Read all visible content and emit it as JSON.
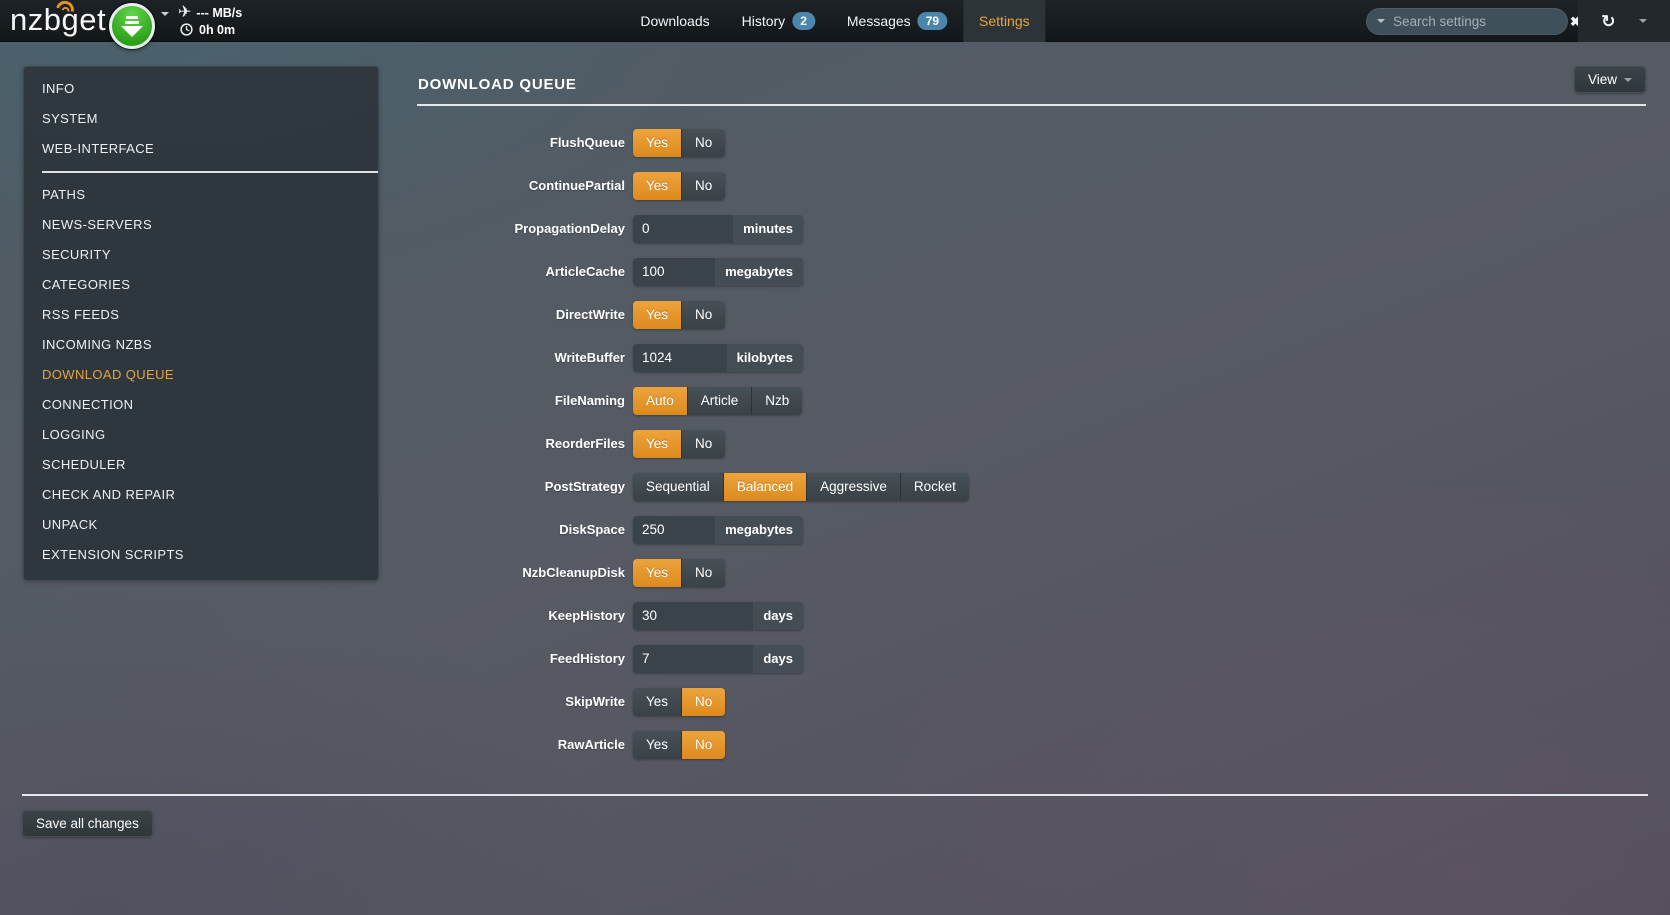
{
  "navbar": {
    "logo": "nzbget",
    "speed": "--- MB/s",
    "time_left": "0h 0m",
    "tabs": [
      {
        "label": "Downloads",
        "badge": null,
        "active": false
      },
      {
        "label": "History",
        "badge": "2",
        "active": false
      },
      {
        "label": "Messages",
        "badge": "79",
        "active": false
      },
      {
        "label": "Settings",
        "badge": null,
        "active": true
      }
    ],
    "search": {
      "placeholder": "Search settings",
      "value": ""
    }
  },
  "sidebar": {
    "groups": [
      [
        {
          "label": "INFO",
          "active": false
        },
        {
          "label": "SYSTEM",
          "active": false
        },
        {
          "label": "WEB-INTERFACE",
          "active": false
        }
      ],
      [
        {
          "label": "PATHS",
          "active": false
        },
        {
          "label": "NEWS-SERVERS",
          "active": false
        },
        {
          "label": "SECURITY",
          "active": false
        },
        {
          "label": "CATEGORIES",
          "active": false
        },
        {
          "label": "RSS FEEDS",
          "active": false
        },
        {
          "label": "INCOMING NZBS",
          "active": false
        },
        {
          "label": "DOWNLOAD QUEUE",
          "active": true
        },
        {
          "label": "CONNECTION",
          "active": false
        },
        {
          "label": "LOGGING",
          "active": false
        },
        {
          "label": "SCHEDULER",
          "active": false
        },
        {
          "label": "CHECK AND REPAIR",
          "active": false
        },
        {
          "label": "UNPACK",
          "active": false
        },
        {
          "label": "EXTENSION SCRIPTS",
          "active": false
        }
      ]
    ]
  },
  "main": {
    "title": "DOWNLOAD QUEUE",
    "view_button": "View",
    "save_button": "Save all changes",
    "rows": [
      {
        "label": "FlushQueue",
        "type": "toggle",
        "options": [
          "Yes",
          "No"
        ],
        "selected": "Yes"
      },
      {
        "label": "ContinuePartial",
        "type": "toggle",
        "options": [
          "Yes",
          "No"
        ],
        "selected": "Yes"
      },
      {
        "label": "PropagationDelay",
        "type": "input",
        "value": "0",
        "unit": "minutes"
      },
      {
        "label": "ArticleCache",
        "type": "input",
        "value": "100",
        "unit": "megabytes"
      },
      {
        "label": "DirectWrite",
        "type": "toggle",
        "options": [
          "Yes",
          "No"
        ],
        "selected": "Yes"
      },
      {
        "label": "WriteBuffer",
        "type": "input",
        "value": "1024",
        "unit": "kilobytes"
      },
      {
        "label": "FileNaming",
        "type": "toggle",
        "options": [
          "Auto",
          "Article",
          "Nzb"
        ],
        "selected": "Auto"
      },
      {
        "label": "ReorderFiles",
        "type": "toggle",
        "options": [
          "Yes",
          "No"
        ],
        "selected": "Yes"
      },
      {
        "label": "PostStrategy",
        "type": "toggle",
        "options": [
          "Sequential",
          "Balanced",
          "Aggressive",
          "Rocket"
        ],
        "selected": "Balanced"
      },
      {
        "label": "DiskSpace",
        "type": "input",
        "value": "250",
        "unit": "megabytes"
      },
      {
        "label": "NzbCleanupDisk",
        "type": "toggle",
        "options": [
          "Yes",
          "No"
        ],
        "selected": "Yes"
      },
      {
        "label": "KeepHistory",
        "type": "input",
        "value": "30",
        "unit": "days"
      },
      {
        "label": "FeedHistory",
        "type": "input",
        "value": "7",
        "unit": "days"
      },
      {
        "label": "SkipWrite",
        "type": "toggle",
        "options": [
          "Yes",
          "No"
        ],
        "selected": "No"
      },
      {
        "label": "RawArticle",
        "type": "toggle",
        "options": [
          "Yes",
          "No"
        ],
        "selected": "No"
      }
    ]
  },
  "colors": {
    "accent_orange": "#e6932b",
    "active_link_orange": "#e7a43c",
    "badge_blue": "#4c86ad",
    "download_green": "#3db327"
  }
}
